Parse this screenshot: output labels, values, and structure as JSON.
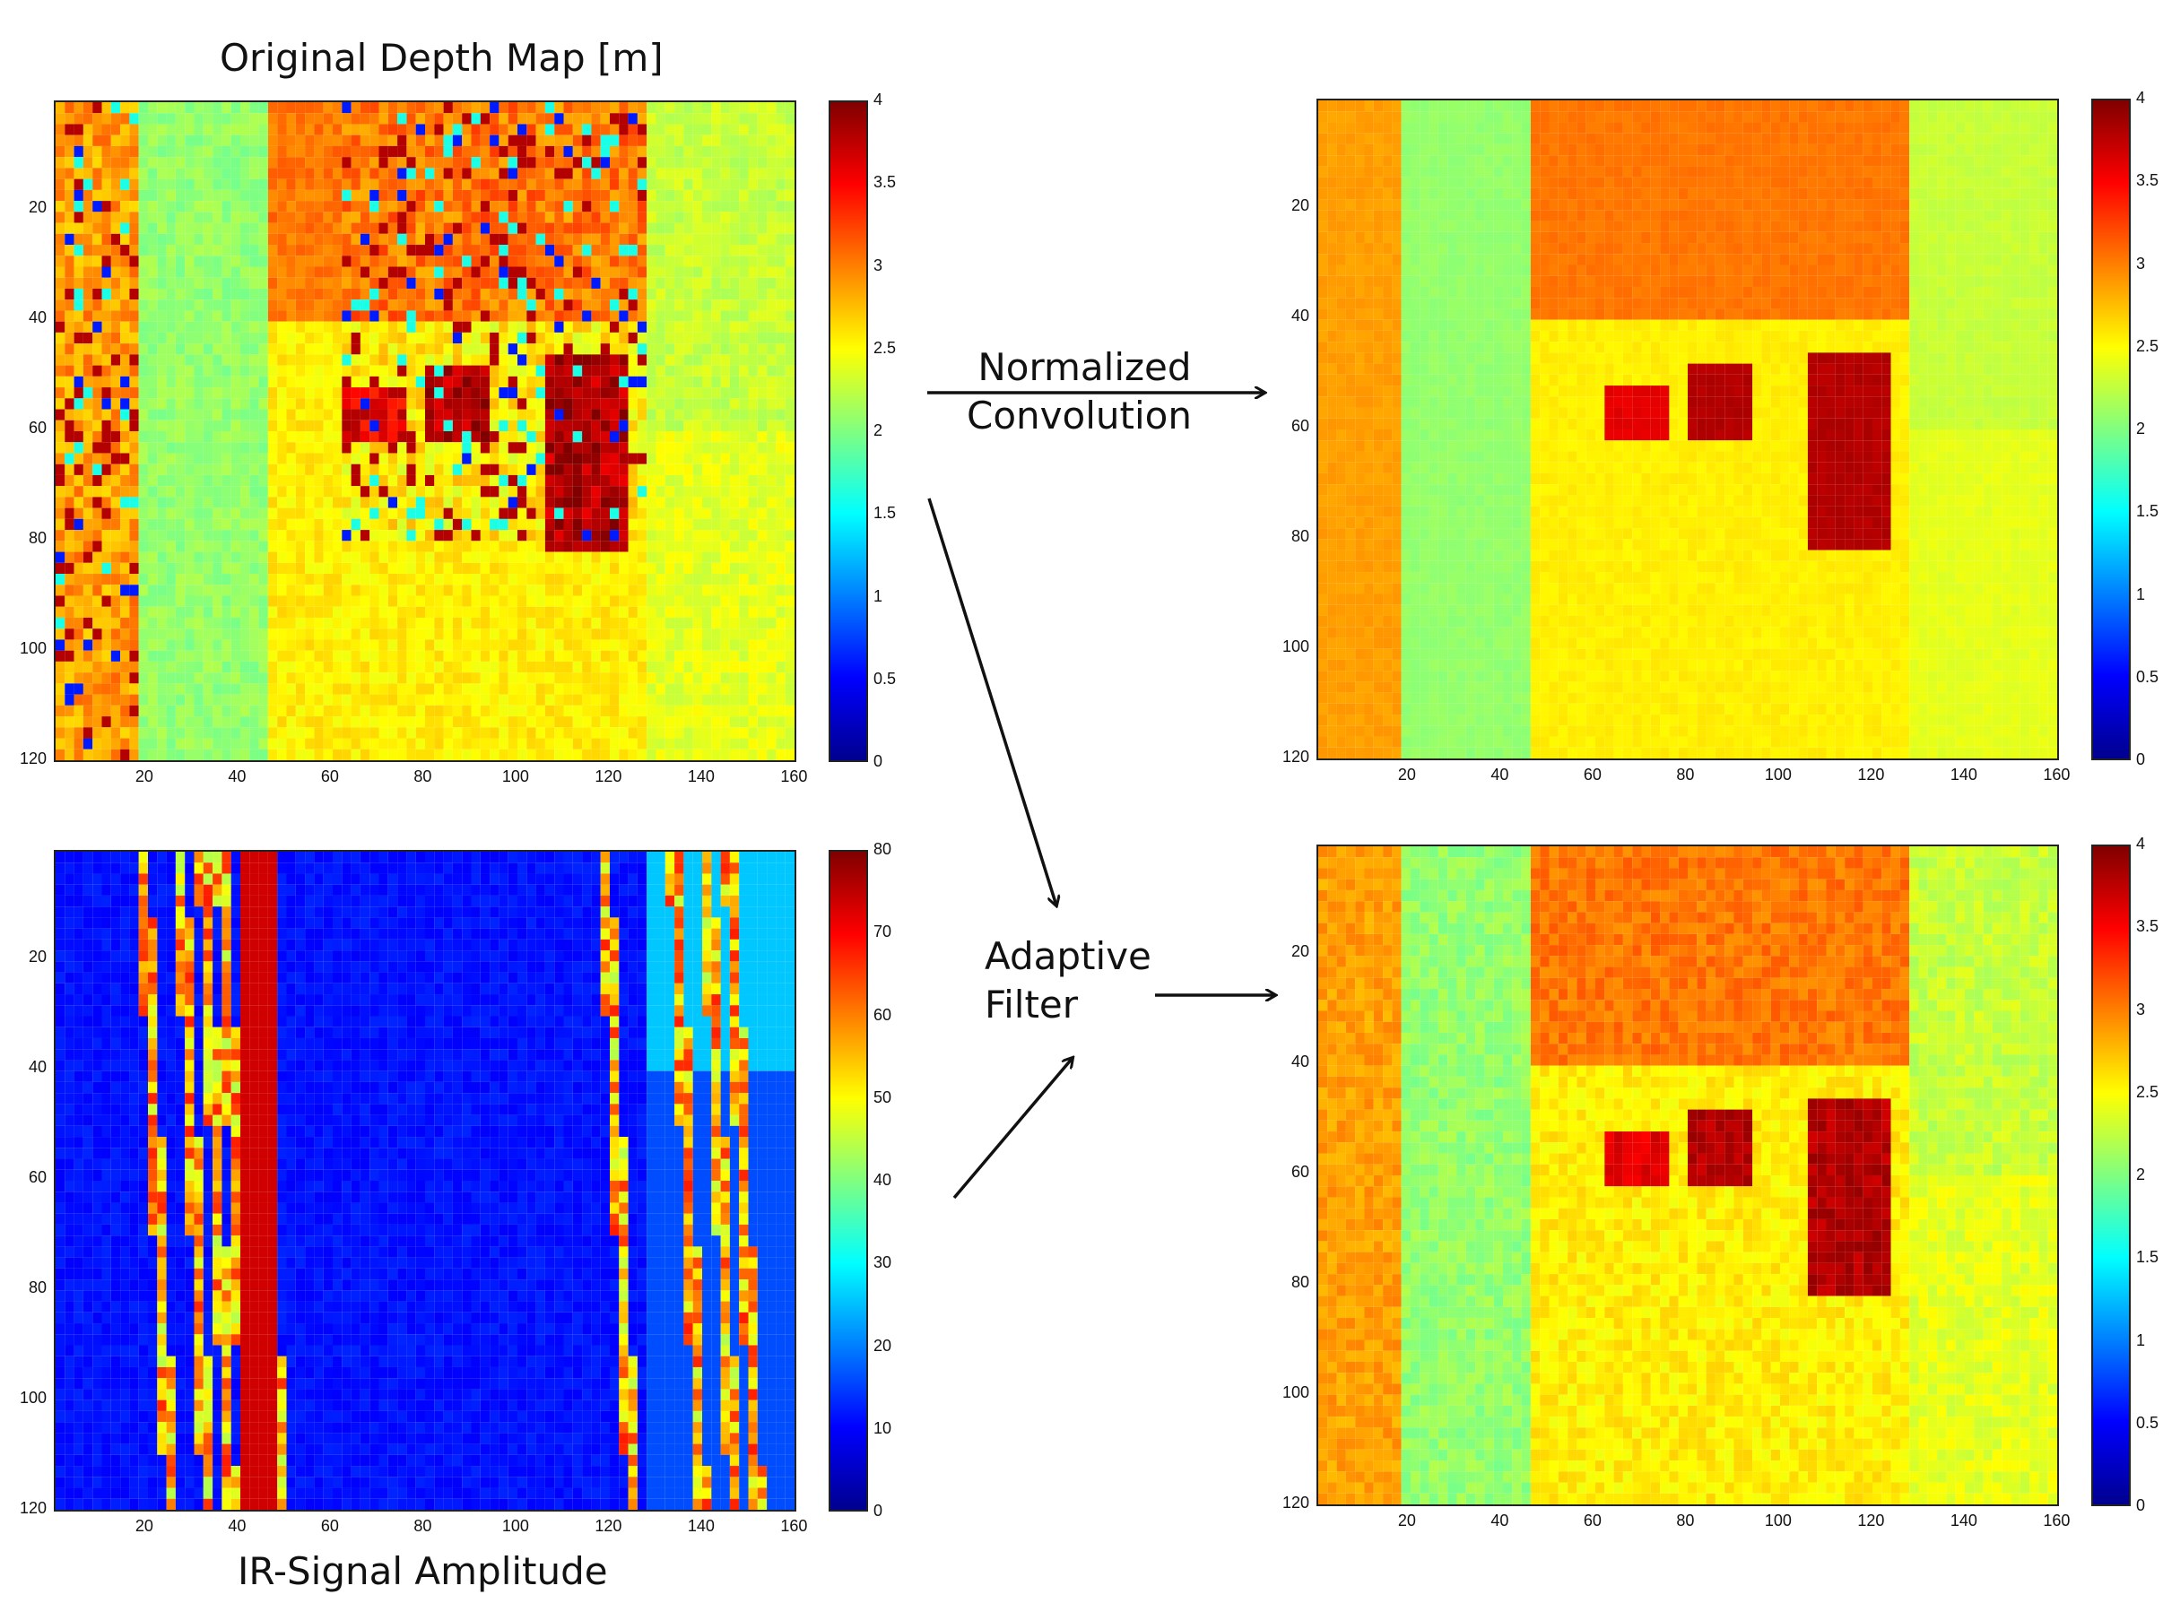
{
  "titles": {
    "original": "Original Depth Map [m]",
    "amplitude": "IR-Signal Amplitude"
  },
  "methods": {
    "normalized": [
      "Normalized",
      "Convolution"
    ],
    "adaptive": [
      "Adaptive",
      "Filter"
    ]
  },
  "axes": {
    "x_ticks": [
      "20",
      "40",
      "60",
      "80",
      "100",
      "120",
      "140",
      "160"
    ],
    "y_ticks": [
      "20",
      "40",
      "60",
      "80",
      "100",
      "120"
    ]
  },
  "colorbars": {
    "depth_ticks": [
      "4",
      "3.5",
      "3",
      "2.5",
      "2",
      "1.5",
      "1",
      "0.5",
      "0"
    ],
    "amplitude_ticks": [
      "80",
      "70",
      "60",
      "50",
      "40",
      "30",
      "20",
      "10",
      "0"
    ]
  },
  "colors": {
    "jet": [
      "#00008f",
      "#0000ff",
      "#0080ff",
      "#00ffff",
      "#80ff80",
      "#ffff00",
      "#ff8000",
      "#ff0000",
      "#800000"
    ],
    "arrow": "#111111"
  }
}
